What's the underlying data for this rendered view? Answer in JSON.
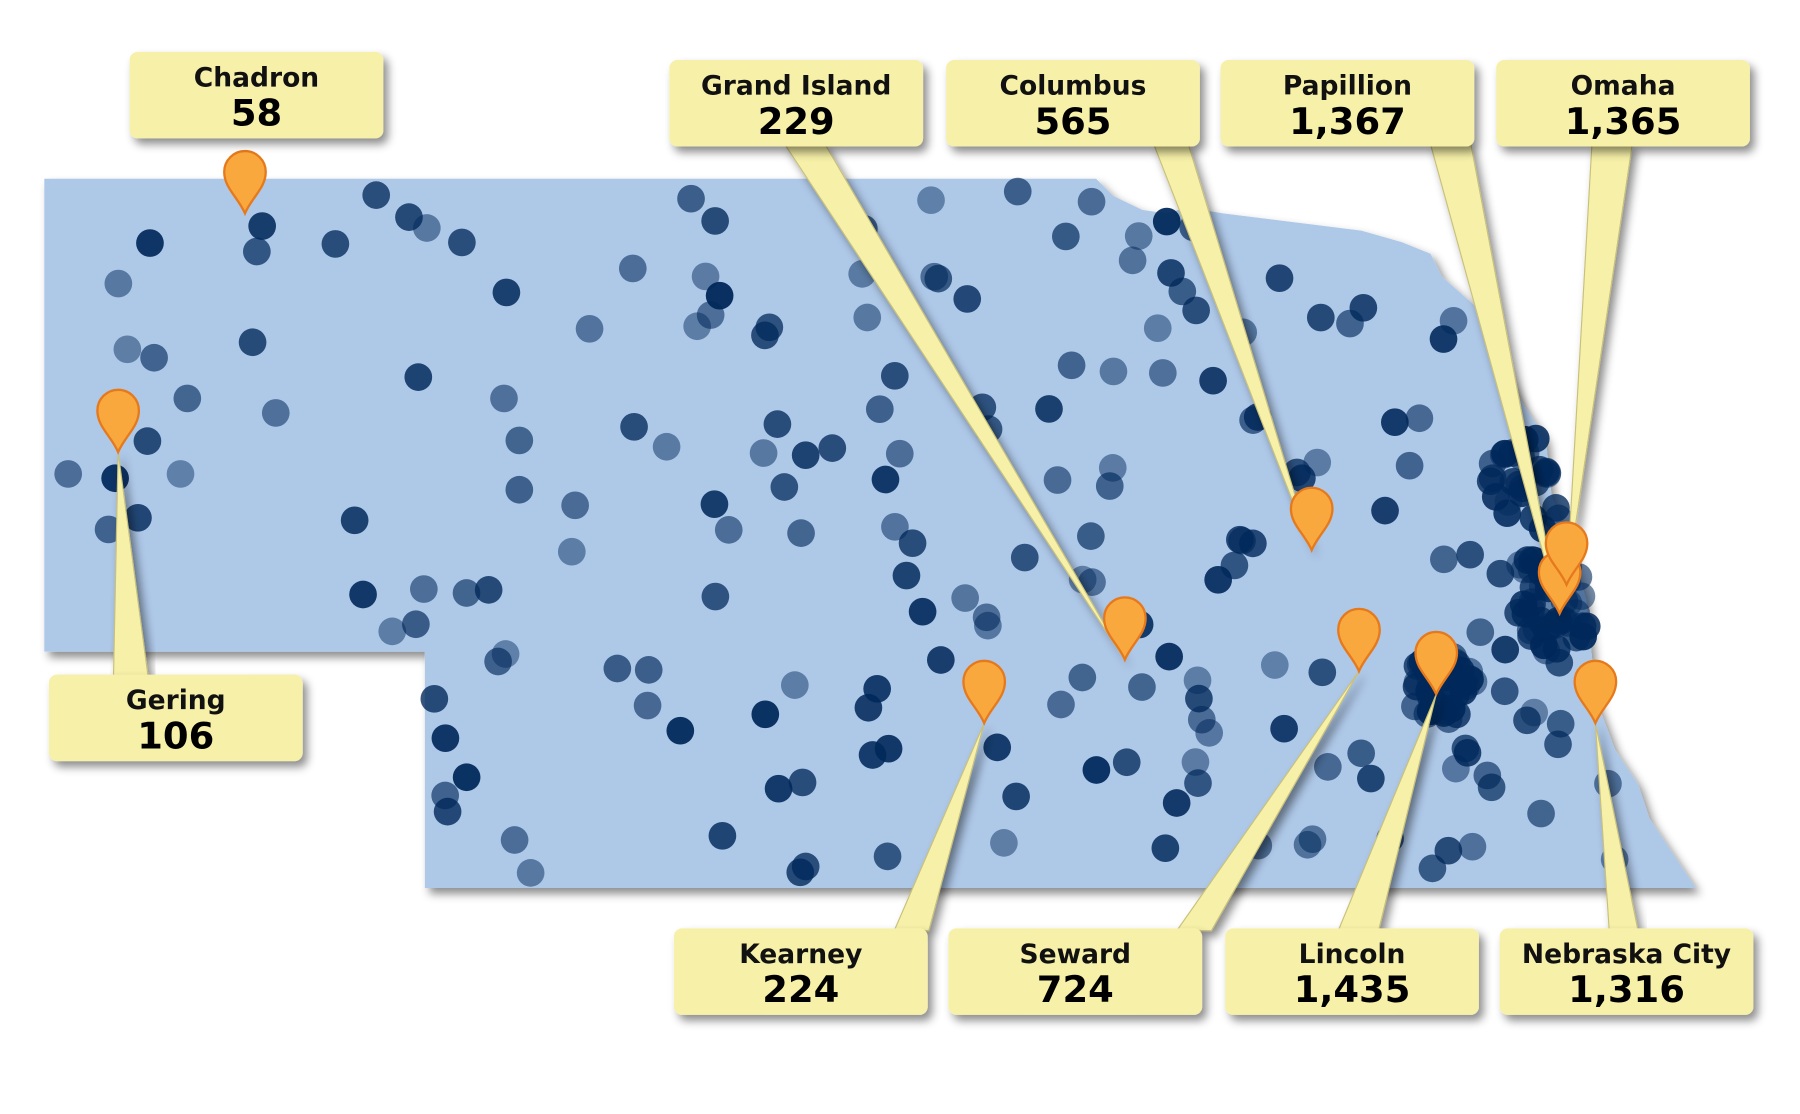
{
  "callouts": [
    {
      "name": "Chadron",
      "count": "58"
    },
    {
      "name": "Gering",
      "count": "106"
    },
    {
      "name": "Grand Island",
      "count": "229"
    },
    {
      "name": "Columbus",
      "count": "565"
    },
    {
      "name": "Papillion",
      "count": "1,367"
    },
    {
      "name": "Omaha",
      "count": "1,365"
    },
    {
      "name": "Kearney",
      "count": "224"
    },
    {
      "name": "Seward",
      "count": "724"
    },
    {
      "name": "Lincoln",
      "count": "1,435"
    },
    {
      "name": "Nebraska City",
      "count": "1,316"
    }
  ]
}
